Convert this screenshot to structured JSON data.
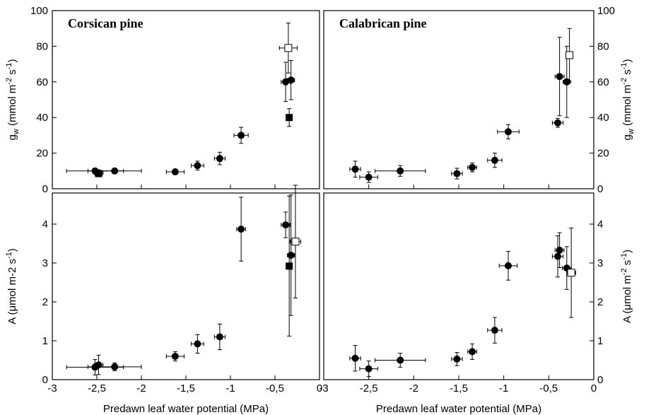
{
  "chart_data": [
    {
      "type": "scatter",
      "panel": "top-left",
      "title": "Corsican  pine",
      "xlabel": "",
      "ylabel": "g_w (mmol m-2 s-1)",
      "ylabel_parts": [
        "g",
        "w",
        " (mmol m",
        "-2",
        " s",
        "-1",
        ")"
      ],
      "xlim": [
        -3,
        0
      ],
      "ylim": [
        0,
        100
      ],
      "yticks": [
        0,
        20,
        40,
        60,
        80,
        100
      ],
      "ytick_labels": [
        "0",
        "20",
        "40",
        "60",
        "80",
        "100"
      ],
      "xticks": [
        -3,
        -2.5,
        -2,
        -1.5,
        -1,
        -0.5,
        0
      ],
      "xtick_labels": [],
      "y_axis_side": "left",
      "grid": false,
      "series": [
        {
          "marker": "filled-circle",
          "points": [
            {
              "x": -2.52,
              "y": 10,
              "xerr": 0.32,
              "yerr": 1.5
            },
            {
              "x": -2.48,
              "y": 9,
              "xerr": 0.05,
              "yerr": 1.5
            },
            {
              "x": -2.3,
              "y": 10,
              "xerr": 0.3,
              "yerr": 1
            },
            {
              "x": -1.62,
              "y": 9.5,
              "xerr": 0.1,
              "yerr": 1.5
            },
            {
              "x": -1.37,
              "y": 13,
              "xerr": 0.07,
              "yerr": 2.5
            },
            {
              "x": -1.12,
              "y": 17,
              "xerr": 0.06,
              "yerr": 3.5
            },
            {
              "x": -0.88,
              "y": 30,
              "xerr": 0.08,
              "yerr": 4.5
            },
            {
              "x": -0.38,
              "y": 60,
              "xerr": 0.05,
              "yerr": 11
            },
            {
              "x": -0.32,
              "y": 61,
              "xerr": 0.04,
              "yerr": 11
            }
          ]
        },
        {
          "marker": "filled-square",
          "points": [
            {
              "x": -2.48,
              "y": 8.5,
              "xerr": 0.04,
              "yerr": 1
            },
            {
              "x": -0.34,
              "y": 40,
              "xerr": 0.03,
              "yerr": 5
            }
          ]
        },
        {
          "marker": "open-square",
          "points": [
            {
              "x": -0.35,
              "y": 79,
              "xerr": 0.1,
              "yerr": 14
            }
          ]
        }
      ]
    },
    {
      "type": "scatter",
      "panel": "top-right",
      "title": "Calabrican  pine",
      "xlabel": "",
      "ylabel": "g_w (mmol m-2 s-1)",
      "ylabel_parts": [
        "g",
        "w",
        " (mmol m",
        "-2",
        " s",
        "-1",
        ")"
      ],
      "xlim": [
        -3,
        0
      ],
      "ylim": [
        0,
        100
      ],
      "yticks": [
        0,
        20,
        40,
        60,
        80,
        100
      ],
      "ytick_labels": [
        "0",
        "20",
        "40",
        "60",
        "80",
        "100"
      ],
      "xticks": [
        -3,
        -2.5,
        -2,
        -1.5,
        -1,
        -0.5,
        0
      ],
      "xtick_labels": [],
      "y_axis_side": "right",
      "grid": false,
      "series": [
        {
          "marker": "filled-circle",
          "points": [
            {
              "x": -2.65,
              "y": 11,
              "xerr": 0.06,
              "yerr": 4.5
            },
            {
              "x": -2.5,
              "y": 6.5,
              "xerr": 0.1,
              "yerr": 3
            },
            {
              "x": -2.15,
              "y": 10,
              "xerr": 0.28,
              "yerr": 3
            },
            {
              "x": -1.52,
              "y": 8.5,
              "xerr": 0.06,
              "yerr": 3
            },
            {
              "x": -1.35,
              "y": 12,
              "xerr": 0.05,
              "yerr": 2.5
            },
            {
              "x": -1.1,
              "y": 16,
              "xerr": 0.08,
              "yerr": 4
            },
            {
              "x": -0.95,
              "y": 32,
              "xerr": 0.12,
              "yerr": 4
            },
            {
              "x": -0.4,
              "y": 37,
              "xerr": 0.06,
              "yerr": 2.5
            },
            {
              "x": -0.38,
              "y": 63,
              "xerr": 0.05,
              "yerr": 22
            },
            {
              "x": -0.3,
              "y": 60,
              "xerr": 0.04,
              "yerr": 20
            }
          ]
        },
        {
          "marker": "open-square",
          "points": [
            {
              "x": -0.27,
              "y": 75,
              "xerr": 0.03,
              "yerr": 15
            }
          ]
        }
      ]
    },
    {
      "type": "scatter",
      "panel": "bottom-left",
      "title": "",
      "xlabel": "Predawn leaf water potential (MPa)",
      "ylabel": "A (μmol m-2 s-1)",
      "ylabel_parts": [
        "A (μmol m-2 s",
        "-1",
        ")"
      ],
      "xlim": [
        -3,
        0
      ],
      "ylim": [
        0,
        4.8
      ],
      "yticks": [
        0,
        1,
        2,
        3,
        4
      ],
      "ytick_labels": [
        "0",
        "1",
        "2",
        "3",
        "4"
      ],
      "xticks": [
        -3,
        -2.5,
        -2,
        -1.5,
        -1,
        -0.5,
        0
      ],
      "xtick_labels": [
        "-3",
        "-2,5",
        "-2",
        "-1,5",
        "-1",
        "-0,5",
        "0"
      ],
      "y_axis_side": "left",
      "grid": false,
      "series": [
        {
          "marker": "filled-circle",
          "points": [
            {
              "x": -2.52,
              "y": 0.32,
              "xerr": 0.32,
              "yerr": 0.2
            },
            {
              "x": -2.48,
              "y": 0.38,
              "xerr": 0.05,
              "yerr": 0.25
            },
            {
              "x": -2.3,
              "y": 0.33,
              "xerr": 0.3,
              "yerr": 0.1
            },
            {
              "x": -1.62,
              "y": 0.6,
              "xerr": 0.1,
              "yerr": 0.12
            },
            {
              "x": -1.37,
              "y": 0.92,
              "xerr": 0.07,
              "yerr": 0.24
            },
            {
              "x": -1.12,
              "y": 1.1,
              "xerr": 0.06,
              "yerr": 0.33
            },
            {
              "x": -0.88,
              "y": 3.87,
              "xerr": 0.05,
              "yerr": 0.82
            },
            {
              "x": -0.38,
              "y": 3.98,
              "xerr": 0.05,
              "yerr": 0.33
            },
            {
              "x": -0.32,
              "y": 3.2,
              "xerr": 0.04,
              "yerr": 1.55
            }
          ]
        },
        {
          "marker": "filled-square",
          "points": [
            {
              "x": -0.34,
              "y": 2.92,
              "xerr": 0.02,
              "yerr": 1.8
            }
          ]
        },
        {
          "marker": "open-square",
          "points": [
            {
              "x": -0.27,
              "y": 3.55,
              "xerr": 0.06,
              "yerr": 1.45
            }
          ]
        }
      ]
    },
    {
      "type": "scatter",
      "panel": "bottom-right",
      "title": "",
      "xlabel": "Predawn leaf water potential (MPa)",
      "ylabel": "A (μmol m-2 s-1)",
      "ylabel_parts": [
        "A (μmol m",
        "-2",
        " s",
        "-1",
        ")"
      ],
      "xlim": [
        -3,
        0
      ],
      "ylim": [
        0,
        4.8
      ],
      "yticks": [
        0,
        1,
        2,
        3,
        4
      ],
      "ytick_labels": [
        "0",
        "1",
        "2",
        "3",
        "4"
      ],
      "xticks": [
        -3,
        -2.5,
        -2,
        -1.5,
        -1,
        -0.5,
        0
      ],
      "xtick_labels": [
        "-3",
        "-2,5",
        "-2",
        "-1,5",
        "-1",
        "-0,5",
        "0"
      ],
      "y_axis_side": "right",
      "grid": false,
      "series": [
        {
          "marker": "filled-circle",
          "points": [
            {
              "x": -2.65,
              "y": 0.55,
              "xerr": 0.06,
              "yerr": 0.33
            },
            {
              "x": -2.5,
              "y": 0.28,
              "xerr": 0.1,
              "yerr": 0.2
            },
            {
              "x": -2.15,
              "y": 0.5,
              "xerr": 0.28,
              "yerr": 0.18
            },
            {
              "x": -1.52,
              "y": 0.53,
              "xerr": 0.06,
              "yerr": 0.17
            },
            {
              "x": -1.35,
              "y": 0.72,
              "xerr": 0.05,
              "yerr": 0.2
            },
            {
              "x": -1.1,
              "y": 1.27,
              "xerr": 0.08,
              "yerr": 0.33
            },
            {
              "x": -0.95,
              "y": 2.93,
              "xerr": 0.1,
              "yerr": 0.37
            },
            {
              "x": -0.4,
              "y": 3.17,
              "xerr": 0.06,
              "yerr": 0.53
            },
            {
              "x": -0.38,
              "y": 3.33,
              "xerr": 0.05,
              "yerr": 0.45
            },
            {
              "x": -0.3,
              "y": 2.87,
              "xerr": 0.05,
              "yerr": 0.55
            }
          ]
        },
        {
          "marker": "open-square",
          "points": [
            {
              "x": -0.25,
              "y": 2.75,
              "xerr": 0.05,
              "yerr": 1.15
            }
          ]
        }
      ]
    }
  ]
}
